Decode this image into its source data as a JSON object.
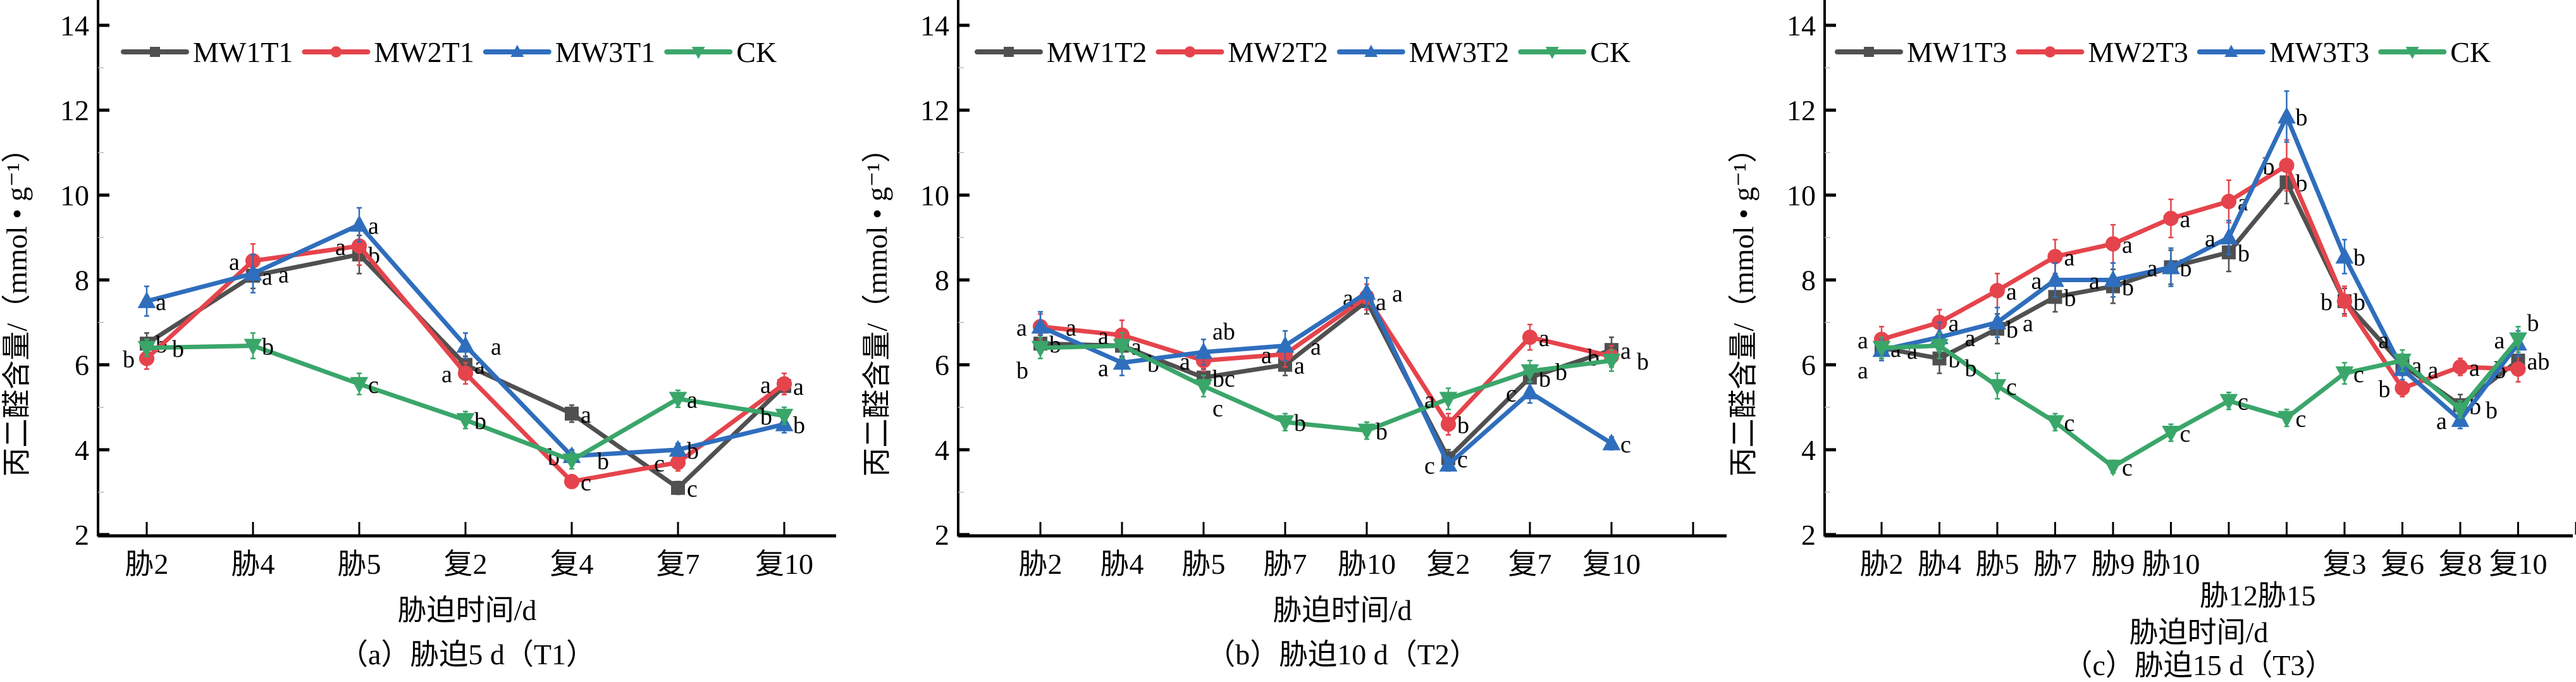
{
  "figure": {
    "y_axis_label": "丙二醛含量/（mmol • g⁻¹）",
    "x_axis_label": "胁迫时间/d",
    "colors": {
      "MW1": "#505050",
      "MW2": "#e5444c",
      "MW3": "#2f6ebd",
      "CK": "#3aa66a"
    }
  },
  "chart_data": [
    {
      "type": "line",
      "panel": "a",
      "caption": "（a）胁迫5 d（T1）",
      "xlabel": "胁迫时间/d",
      "ylabel": "丙二醛含量/（mmol • g⁻¹）",
      "ylim": [
        2,
        14.5
      ],
      "yticks": [
        2,
        4,
        6,
        8,
        10,
        12,
        14
      ],
      "categories": [
        "胁2",
        "胁4",
        "胁5",
        "复2",
        "复4",
        "复7",
        "复10"
      ],
      "legend_position": "top",
      "series": [
        {
          "name": "MW1T1",
          "key": "MW1",
          "marker": "square",
          "values": [
            6.5,
            8.1,
            8.6,
            6.0,
            4.85,
            3.1,
            5.5
          ],
          "errors": [
            0.25,
            0.3,
            0.45,
            0.2,
            0.2,
            0.15,
            0.2
          ],
          "letters": [
            "b",
            "a",
            "b",
            "a",
            "a",
            "c",
            "a"
          ]
        },
        {
          "name": "MW2T1",
          "key": "MW2",
          "marker": "circle",
          "values": [
            6.15,
            8.45,
            8.8,
            5.8,
            3.25,
            3.7,
            5.55
          ],
          "errors": [
            0.25,
            0.4,
            0.45,
            0.25,
            0.1,
            0.2,
            0.25
          ],
          "letters": [
            "b",
            "a",
            "a",
            "a",
            "c",
            "c",
            "a"
          ]
        },
        {
          "name": "MW3T1",
          "key": "MW3",
          "marker": "triangle-up",
          "values": [
            7.5,
            8.15,
            9.3,
            6.45,
            3.85,
            4.0,
            4.6
          ],
          "errors": [
            0.35,
            0.45,
            0.4,
            0.3,
            0.15,
            0.15,
            0.2
          ],
          "letters": [
            "a",
            "a",
            "a",
            "a",
            "b",
            "b",
            "b"
          ]
        },
        {
          "name": "CK",
          "key": "CK",
          "marker": "triangle-down",
          "values": [
            6.4,
            6.45,
            5.55,
            4.7,
            3.75,
            5.2,
            4.8
          ],
          "errors": [
            0.2,
            0.3,
            0.25,
            0.2,
            0.2,
            0.2,
            0.2
          ],
          "letters": [
            "b",
            "b",
            "c",
            "b",
            "b",
            "a",
            "b"
          ]
        }
      ]
    },
    {
      "type": "line",
      "panel": "b",
      "caption": "（b）胁迫10 d（T2）",
      "xlabel": "胁迫时间/d",
      "ylabel": "丙二醛含量/（mmol • g⁻¹）",
      "ylim": [
        2,
        14.5
      ],
      "yticks": [
        2,
        4,
        6,
        8,
        10,
        12,
        14
      ],
      "categories": [
        "胁2",
        "胁4",
        "胁5",
        "胁7",
        "胁10",
        "复2",
        "复7",
        "复10"
      ],
      "legend_position": "top",
      "series": [
        {
          "name": "MW1T2",
          "key": "MW1",
          "marker": "square",
          "values": [
            6.5,
            6.45,
            5.7,
            6.0,
            7.5,
            3.8,
            5.7,
            6.35
          ],
          "errors": [
            0.2,
            0.25,
            0.2,
            0.25,
            0.3,
            0.2,
            0.25,
            0.3
          ],
          "letters": [
            "b",
            "a",
            "bc",
            "a",
            "a",
            "c",
            "b",
            "a"
          ]
        },
        {
          "name": "MW2T2",
          "key": "MW2",
          "marker": "circle",
          "values": [
            6.9,
            6.7,
            6.1,
            6.25,
            7.6,
            4.6,
            6.65,
            6.2
          ],
          "errors": [
            0.3,
            0.35,
            0.25,
            0.3,
            0.3,
            0.25,
            0.3,
            0.25
          ],
          "letters": [
            "a",
            "a",
            "a",
            "a",
            "a",
            "b",
            "a",
            "b"
          ]
        },
        {
          "name": "MW3T2",
          "key": "MW3",
          "marker": "triangle-up",
          "values": [
            6.9,
            6.05,
            6.3,
            6.45,
            7.7,
            3.65,
            5.35,
            4.15
          ],
          "errors": [
            0.35,
            0.3,
            0.3,
            0.35,
            0.35,
            0.15,
            0.25,
            0.15
          ],
          "letters": [
            "a",
            "b",
            "ab",
            "a",
            "a",
            "c",
            "c",
            "c"
          ]
        },
        {
          "name": "CK",
          "key": "CK",
          "marker": "triangle-down",
          "values": [
            6.4,
            6.45,
            5.5,
            4.65,
            4.45,
            5.2,
            5.85,
            6.1
          ],
          "errors": [
            0.25,
            0.3,
            0.25,
            0.2,
            0.2,
            0.25,
            0.25,
            0.25
          ],
          "letters": [
            "b",
            "a",
            "c",
            "b",
            "b",
            "a",
            "b",
            "b"
          ]
        }
      ]
    },
    {
      "type": "line",
      "panel": "c",
      "caption": "（c）胁迫15 d（T3）",
      "xlabel": "胁迫时间/d",
      "ylabel": "丙二醛含量/（mmol • g⁻¹）",
      "ylim": [
        2,
        14.5
      ],
      "yticks": [
        2,
        4,
        6,
        8,
        10,
        12,
        14
      ],
      "categories": [
        "胁2",
        "胁4",
        "胁5",
        "胁7",
        "胁9",
        "胁10",
        "胁12",
        "胁15",
        "复3",
        "复6",
        "复8",
        "复10"
      ],
      "legend_position": "top",
      "series": [
        {
          "name": "MW1T3",
          "key": "MW1",
          "marker": "square",
          "values": [
            6.4,
            6.15,
            6.85,
            7.6,
            7.85,
            8.3,
            8.65,
            10.3,
            7.5,
            6.0,
            5.05,
            6.1
          ],
          "errors": [
            0.25,
            0.35,
            0.35,
            0.35,
            0.4,
            0.4,
            0.45,
            0.5,
            0.3,
            0.25,
            0.25,
            0.3
          ],
          "letters": [
            "a",
            "b",
            "b",
            "b",
            "b",
            "b",
            "b",
            "b",
            "b",
            "a",
            "b",
            "ab"
          ]
        },
        {
          "name": "MW2T3",
          "key": "MW2",
          "marker": "circle",
          "values": [
            6.6,
            7.0,
            7.75,
            8.55,
            8.85,
            9.45,
            9.85,
            10.7,
            7.5,
            5.45,
            5.95,
            5.9
          ],
          "errors": [
            0.3,
            0.3,
            0.4,
            0.4,
            0.45,
            0.45,
            0.5,
            0.6,
            0.35,
            0.2,
            0.2,
            0.3
          ],
          "letters": [
            "a",
            "a",
            "a",
            "a",
            "a",
            "a",
            "a",
            "b",
            "b",
            "b",
            "a",
            "b"
          ]
        },
        {
          "name": "MW3T3",
          "key": "MW3",
          "marker": "triangle-up",
          "values": [
            6.35,
            6.65,
            7.0,
            8.0,
            8.0,
            8.3,
            9.0,
            11.85,
            8.55,
            5.9,
            4.7,
            6.5
          ],
          "errors": [
            0.25,
            0.35,
            0.35,
            0.4,
            0.4,
            0.45,
            0.4,
            0.6,
            0.4,
            0.25,
            0.2,
            0.3
          ],
          "letters": [
            "a",
            "a",
            "a",
            "a",
            "a",
            "a",
            "a",
            "b",
            "b",
            "a",
            "a",
            "b"
          ]
        },
        {
          "name": "CK",
          "key": "CK",
          "marker": "triangle-down",
          "values": [
            6.4,
            6.45,
            5.5,
            4.65,
            3.6,
            4.4,
            5.15,
            4.75,
            5.8,
            6.1,
            4.95,
            6.6
          ],
          "errors": [
            0.25,
            0.3,
            0.3,
            0.2,
            0.15,
            0.2,
            0.2,
            0.2,
            0.25,
            0.25,
            0.2,
            0.3
          ],
          "letters": [
            "a",
            "b",
            "c",
            "c",
            "c",
            "c",
            "c",
            "c",
            "c",
            "a",
            "b",
            "a"
          ]
        }
      ]
    }
  ]
}
